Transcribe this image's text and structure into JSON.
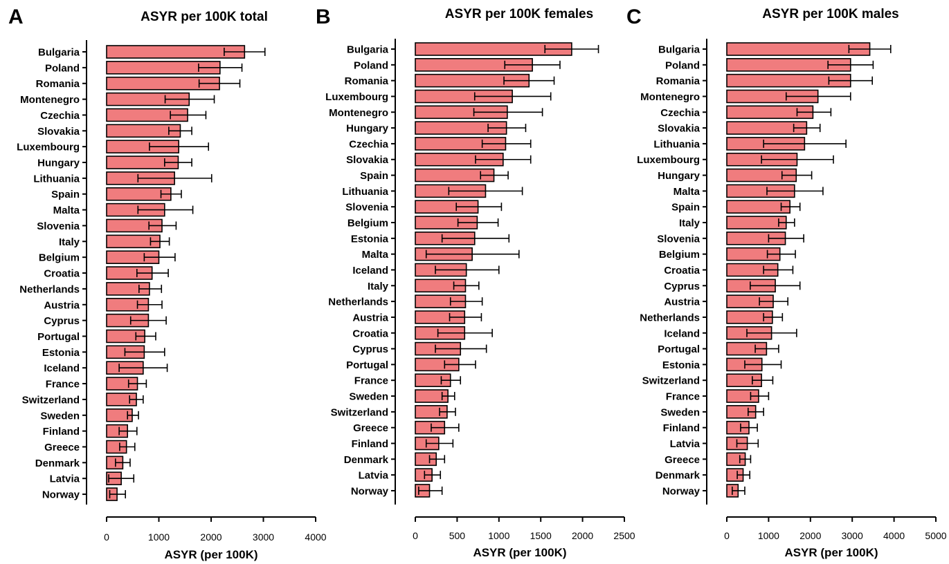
{
  "colors": {
    "bar_fill": "#f07c7e",
    "bar_stroke": "#000000",
    "axis": "#000000"
  },
  "chart_data": [
    {
      "panel": "A",
      "type": "bar",
      "orientation": "horizontal",
      "title": "ASYR per 100K total",
      "xlabel": "ASYR (per 100K)",
      "xlim": [
        0,
        4000
      ],
      "xticks": [
        0,
        1000,
        2000,
        3000,
        4000
      ],
      "error_bars": true,
      "categories": [
        "Bulgaria",
        "Poland",
        "Romania",
        "Montenegro",
        "Czechia",
        "Slovakia",
        "Luxembourg",
        "Hungary",
        "Lithuania",
        "Spain",
        "Malta",
        "Slovenia",
        "Italy",
        "Belgium",
        "Croatia",
        "Netherlands",
        "Austria",
        "Cyprus",
        "Portugal",
        "Estonia",
        "Iceland",
        "France",
        "Switzerland",
        "Sweden",
        "Finland",
        "Greece",
        "Denmark",
        "Latvia",
        "Norway"
      ],
      "values": [
        2640,
        2170,
        2160,
        1580,
        1550,
        1410,
        1380,
        1370,
        1300,
        1230,
        1110,
        1060,
        1020,
        1000,
        870,
        820,
        800,
        800,
        730,
        720,
        700,
        590,
        570,
        490,
        400,
        380,
        310,
        280,
        200
      ],
      "lower": [
        2250,
        1760,
        1770,
        1120,
        1220,
        1190,
        820,
        1110,
        600,
        1040,
        600,
        810,
        840,
        720,
        580,
        620,
        590,
        460,
        560,
        350,
        240,
        420,
        440,
        400,
        240,
        250,
        170,
        40,
        60
      ],
      "upper": [
        3030,
        2590,
        2550,
        2060,
        1900,
        1630,
        1950,
        1630,
        2010,
        1430,
        1650,
        1330,
        1200,
        1310,
        1180,
        1050,
        1060,
        1140,
        940,
        1110,
        1160,
        760,
        700,
        610,
        580,
        540,
        450,
        520,
        360
      ]
    },
    {
      "panel": "B",
      "type": "bar",
      "orientation": "horizontal",
      "title": "ASYR per 100K females",
      "xlabel": "ASYR (per 100K)",
      "xlim": [
        0,
        2500
      ],
      "xticks": [
        0,
        500,
        1000,
        1500,
        2000,
        2500
      ],
      "error_bars": true,
      "categories": [
        "Bulgaria",
        "Poland",
        "Romania",
        "Luxembourg",
        "Montenegro",
        "Hungary",
        "Czechia",
        "Slovakia",
        "Spain",
        "Lithuania",
        "Slovenia",
        "Belgium",
        "Estonia",
        "Malta",
        "Iceland",
        "Italy",
        "Netherlands",
        "Austria",
        "Croatia",
        "Cyprus",
        "Portugal",
        "France",
        "Sweden",
        "Switzerland",
        "Greece",
        "Finland",
        "Denmark",
        "Latvia",
        "Norway"
      ],
      "values": [
        1870,
        1400,
        1360,
        1160,
        1100,
        1090,
        1080,
        1050,
        940,
        840,
        750,
        740,
        710,
        680,
        610,
        600,
        600,
        590,
        590,
        540,
        520,
        420,
        390,
        380,
        350,
        280,
        250,
        200,
        170
      ],
      "lower": [
        1550,
        1070,
        1060,
        710,
        700,
        870,
        800,
        720,
        780,
        400,
        490,
        510,
        320,
        130,
        240,
        460,
        420,
        410,
        270,
        240,
        350,
        310,
        320,
        290,
        190,
        130,
        170,
        110,
        40
      ],
      "upper": [
        2190,
        1730,
        1660,
        1620,
        1520,
        1320,
        1380,
        1380,
        1110,
        1280,
        1030,
        990,
        1120,
        1240,
        1000,
        760,
        800,
        790,
        920,
        850,
        720,
        540,
        470,
        480,
        520,
        450,
        350,
        300,
        320
      ]
    },
    {
      "panel": "C",
      "type": "bar",
      "orientation": "horizontal",
      "title": "ASYR per 100K males",
      "xlabel": "ASYR (per 100K)",
      "xlim": [
        0,
        5000
      ],
      "xticks": [
        0,
        1000,
        2000,
        3000,
        4000,
        5000
      ],
      "error_bars": true,
      "categories": [
        "Bulgaria",
        "Poland",
        "Romania",
        "Montenegro",
        "Czechia",
        "Slovakia",
        "Lithuania",
        "Luxembourg",
        "Hungary",
        "Malta",
        "Spain",
        "Italy",
        "Slovenia",
        "Belgium",
        "Croatia",
        "Cyprus",
        "Austria",
        "Netherlands",
        "Iceland",
        "Portugal",
        "Estonia",
        "Switzerland",
        "France",
        "Sweden",
        "Finland",
        "Latvia",
        "Greece",
        "Denmark",
        "Norway"
      ],
      "values": [
        3420,
        2960,
        2960,
        2180,
        2060,
        1910,
        1860,
        1680,
        1660,
        1620,
        1510,
        1420,
        1400,
        1270,
        1220,
        1160,
        1110,
        1090,
        1070,
        950,
        840,
        830,
        760,
        690,
        530,
        490,
        440,
        390,
        270
      ],
      "lower": [
        2920,
        2420,
        2440,
        1420,
        1680,
        1600,
        880,
        830,
        1320,
        960,
        1300,
        1240,
        1000,
        970,
        880,
        560,
        780,
        880,
        480,
        680,
        430,
        610,
        570,
        510,
        330,
        240,
        310,
        250,
        130
      ],
      "upper": [
        3920,
        3500,
        3480,
        2960,
        2490,
        2230,
        2850,
        2550,
        2030,
        2300,
        1750,
        1620,
        1840,
        1640,
        1580,
        1750,
        1460,
        1330,
        1670,
        1240,
        1300,
        1100,
        1000,
        880,
        730,
        750,
        570,
        550,
        430
      ]
    }
  ],
  "panels": [
    {
      "letter": "A",
      "title": "ASYR per 100K total",
      "xlabel": "ASYR (per 100K)"
    },
    {
      "letter": "B",
      "title": "ASYR per 100K females",
      "xlabel": "ASYR (per 100K)"
    },
    {
      "letter": "C",
      "title": "ASYR per 100K males",
      "xlabel": "ASYR (per 100K)"
    }
  ]
}
